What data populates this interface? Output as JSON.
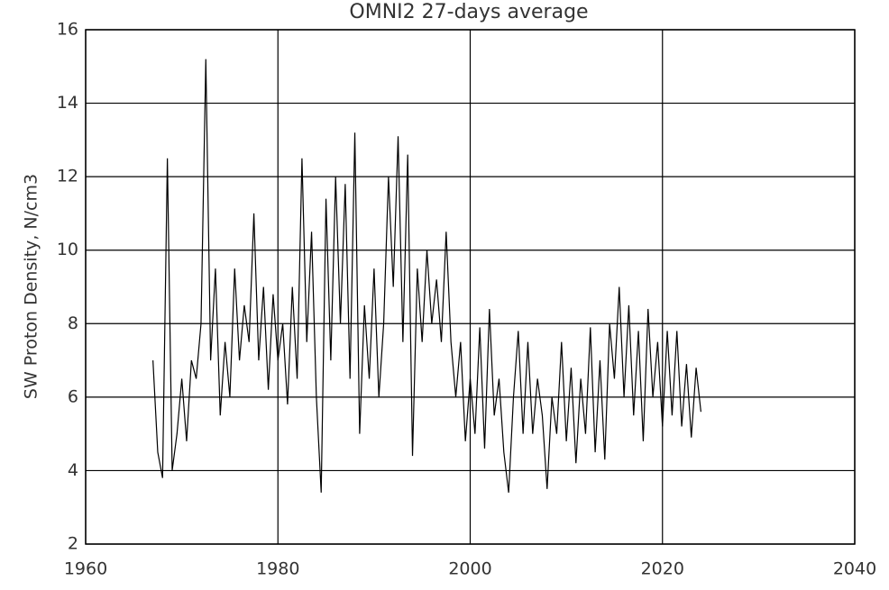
{
  "chart_data": {
    "type": "line",
    "title": "OMNI2 27-days average",
    "y_label": "SW Proton Density, N/cm3",
    "x": [
      1967.0,
      1967.5,
      1968.0,
      1968.5,
      1969.0,
      1969.5,
      1970.0,
      1970.5,
      1971.0,
      1971.5,
      1972.0,
      1972.5,
      1973.0,
      1973.5,
      1974.0,
      1974.5,
      1975.0,
      1975.5,
      1976.0,
      1976.5,
      1977.0,
      1977.5,
      1978.0,
      1978.5,
      1979.0,
      1979.5,
      1980.0,
      1980.5,
      1981.0,
      1981.5,
      1982.0,
      1982.5,
      1983.0,
      1983.5,
      1984.0,
      1984.5,
      1985.0,
      1985.5,
      1986.0,
      1986.5,
      1987.0,
      1987.5,
      1988.0,
      1988.5,
      1989.0,
      1989.5,
      1990.0,
      1990.5,
      1991.0,
      1991.5,
      1992.0,
      1992.5,
      1993.0,
      1993.5,
      1994.0,
      1994.5,
      1995.0,
      1995.5,
      1996.0,
      1996.5,
      1997.0,
      1997.5,
      1998.0,
      1998.5,
      1999.0,
      1999.5,
      2000.0,
      2000.5,
      2001.0,
      2001.5,
      2002.0,
      2002.5,
      2003.0,
      2003.5,
      2004.0,
      2004.5,
      2005.0,
      2005.5,
      2006.0,
      2006.5,
      2007.0,
      2007.5,
      2008.0,
      2008.5,
      2009.0,
      2009.5,
      2010.0,
      2010.5,
      2011.0,
      2011.5,
      2012.0,
      2012.5,
      2013.0,
      2013.5,
      2014.0,
      2014.5,
      2015.0,
      2015.5,
      2016.0,
      2016.5,
      2017.0,
      2017.5,
      2018.0,
      2018.5,
      2019.0,
      2019.5,
      2020.0,
      2020.5,
      2021.0,
      2021.5,
      2022.0,
      2022.5,
      2023.0,
      2023.5,
      2024.0
    ],
    "values": [
      7.0,
      4.5,
      3.8,
      12.5,
      4.0,
      5.0,
      6.5,
      4.8,
      7.0,
      6.5,
      8.0,
      15.2,
      7.0,
      9.5,
      5.5,
      7.5,
      6.0,
      9.5,
      7.0,
      8.5,
      7.5,
      11.0,
      7.0,
      9.0,
      6.2,
      8.8,
      7.0,
      8.0,
      5.8,
      9.0,
      6.5,
      12.5,
      7.5,
      10.5,
      6.0,
      3.4,
      11.4,
      7.0,
      12.0,
      8.0,
      11.8,
      6.5,
      13.2,
      5.0,
      8.5,
      6.5,
      9.5,
      6.0,
      8.0,
      12.0,
      9.0,
      13.1,
      7.5,
      12.6,
      4.4,
      9.5,
      7.5,
      10.0,
      8.0,
      9.2,
      7.5,
      10.5,
      7.5,
      6.0,
      7.5,
      4.8,
      6.5,
      5.0,
      7.9,
      4.6,
      8.4,
      5.5,
      6.5,
      4.5,
      3.4,
      6.0,
      7.8,
      5.0,
      7.5,
      5.0,
      6.5,
      5.5,
      3.5,
      6.0,
      5.0,
      7.5,
      4.8,
      6.8,
      4.2,
      6.5,
      5.0,
      7.9,
      4.5,
      7.0,
      4.3,
      8.0,
      6.5,
      9.0,
      6.0,
      8.5,
      5.5,
      7.8,
      4.8,
      8.4,
      6.0,
      7.5,
      5.2,
      7.8,
      5.5,
      7.8,
      5.2,
      6.9,
      4.9,
      6.8,
      5.6
    ],
    "color": "#000000",
    "xlim": [
      1960,
      2040
    ],
    "xticks": [
      1960,
      1980,
      2000,
      2020,
      2040
    ],
    "ylim": [
      2,
      16
    ],
    "yticks": [
      2,
      4,
      6,
      8,
      10,
      12,
      14,
      16
    ],
    "grid": true
  }
}
